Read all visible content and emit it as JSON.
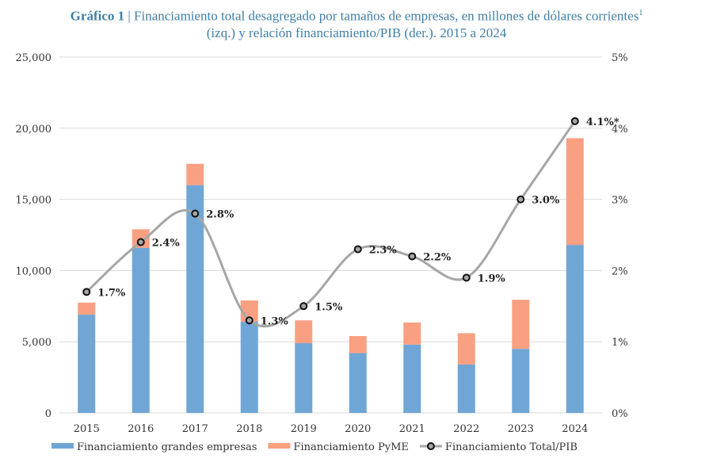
{
  "title": {
    "prefix": "Gráfico 1",
    "line1": "| Financiamiento total desagregado por tamaños de empresas, en millones de dólares corrientes",
    "sup": "1",
    "line2": "(izq.) y relación financiamiento/PIB (der.). 2015 a 2024"
  },
  "chart_data": {
    "type": "bar",
    "stacked": true,
    "categories": [
      "2015",
      "2016",
      "2017",
      "2018",
      "2019",
      "2020",
      "2021",
      "2022",
      "2023",
      "2024"
    ],
    "series": [
      {
        "name": "Financiamiento grandes empresas",
        "type": "bar",
        "axis": "left",
        "color": "#6fa6d6",
        "values": [
          6900,
          11600,
          16000,
          6400,
          4900,
          4200,
          4800,
          3400,
          4500,
          11800
        ]
      },
      {
        "name": "Financiamiento PyME",
        "type": "bar",
        "axis": "left",
        "color": "#f9a082",
        "values": [
          850,
          1300,
          1500,
          1500,
          1600,
          1200,
          1550,
          2200,
          3450,
          7500
        ]
      },
      {
        "name": "Financiamiento Total/PIB",
        "type": "line",
        "axis": "right",
        "color": "#a6a6a6",
        "values": [
          1.7,
          2.4,
          2.8,
          1.3,
          1.5,
          2.3,
          2.2,
          1.9,
          3.0,
          4.1
        ],
        "labels": [
          "1.7%",
          "2.4%",
          "2.8%",
          "1.3%",
          "1.5%",
          "2.3%",
          "2.2%",
          "1.9%",
          "3.0%",
          "4.1%*"
        ]
      }
    ],
    "y_left": {
      "ylim": [
        0,
        25000
      ],
      "ticks": [
        "0",
        "5,000",
        "10,000",
        "15,000",
        "20,000",
        "25,000"
      ]
    },
    "y_right": {
      "ylim": [
        0,
        5
      ],
      "ticks": [
        "0%",
        "1%",
        "2%",
        "3%",
        "4%",
        "5%"
      ]
    },
    "grid": true,
    "legend": "bottom"
  }
}
